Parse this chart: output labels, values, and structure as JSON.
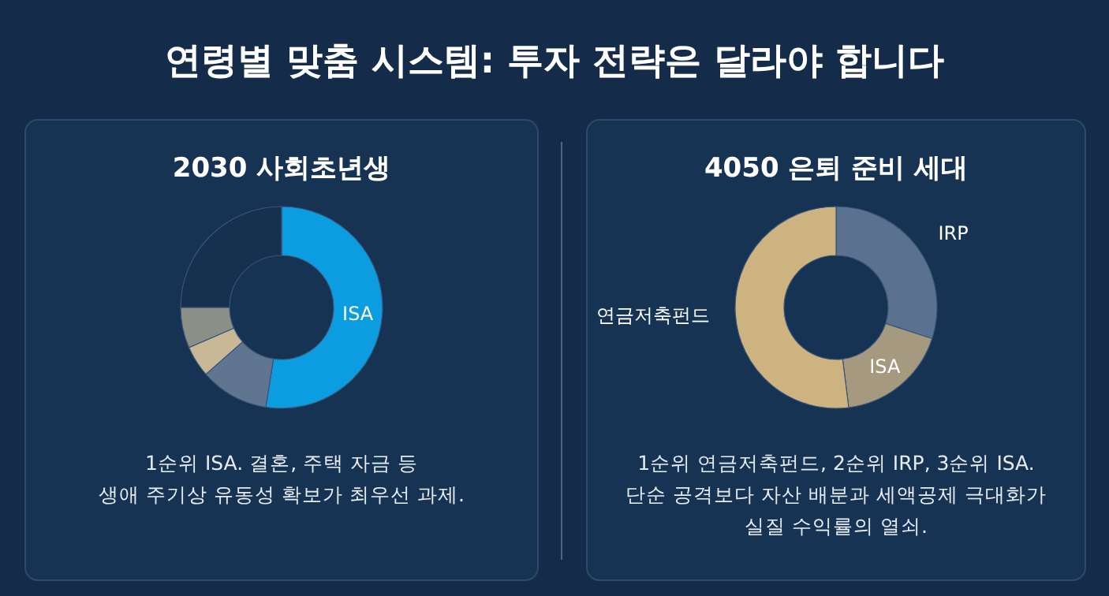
{
  "chart_data": [
    {
      "type": "other",
      "title": "연령별 맞춤 시스템: 투자 전략은 달라야 합니다"
    },
    {
      "type": "donut",
      "title": "2030 사회초년생",
      "categories": [
        "ISA",
        null,
        null,
        null,
        null
      ],
      "values": [
        52.5,
        11,
        5,
        6.5,
        25
      ],
      "colors": [
        "#0c9de0",
        "#5f7590",
        "#c8b896",
        "#8c8e88",
        "#17304f"
      ],
      "annotations": [
        "1순위 ISA. 결혼, 주택 자금 등",
        "생애 주기상 유동성 확보가 최우선 과제."
      ]
    },
    {
      "type": "donut",
      "title": "4050 은퇴 준비 세대",
      "categories": [
        "IRP",
        "ISA",
        "연금저축펀드"
      ],
      "values": [
        30,
        18,
        52
      ],
      "colors": [
        "#5a7290",
        "#a59a80",
        "#cdb37f"
      ],
      "annotations": [
        "1순위 연금저축펀드, 2순위 IRP, 3순위 ISA.",
        "단순 공격보다 자산 배분과 세액공제 극대화가",
        "실질 수익률의 열쇠."
      ]
    }
  ]
}
